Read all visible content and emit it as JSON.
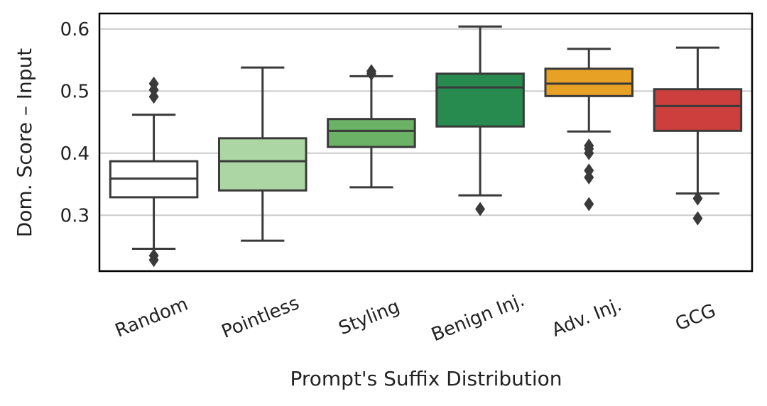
{
  "chart_data": {
    "type": "box",
    "xlabel": "Prompt's Suffix Distribution",
    "ylabel": "Dom. Score – Input",
    "ylim": [
      0.21,
      0.625
    ],
    "yticks": [
      0.3,
      0.4,
      0.5,
      0.6
    ],
    "ytick_labels": [
      "0.3",
      "0.4",
      "0.5",
      "0.6"
    ],
    "grid": "horizontal",
    "categories": [
      "Random",
      "Pointless",
      "Styling",
      "Benign Inj.",
      "Adv. Inj.",
      "GCG"
    ],
    "boxes": [
      {
        "category": "Random",
        "whisker_low": 0.246,
        "q1": 0.329,
        "median": 0.359,
        "q3": 0.387,
        "whisker_high": 0.462,
        "outliers": [
          0.228,
          0.235,
          0.491,
          0.502,
          0.512
        ],
        "color": "#ffffff"
      },
      {
        "category": "Pointless",
        "whisker_low": 0.259,
        "q1": 0.34,
        "median": 0.387,
        "q3": 0.424,
        "whisker_high": 0.538,
        "outliers": [],
        "color": "#acd7a4"
      },
      {
        "category": "Styling",
        "whisker_low": 0.345,
        "q1": 0.41,
        "median": 0.436,
        "q3": 0.455,
        "whisker_high": 0.524,
        "outliers": [
          0.528,
          0.532
        ],
        "color": "#6bb266"
      },
      {
        "category": "Benign Inj.",
        "whisker_low": 0.332,
        "q1": 0.443,
        "median": 0.506,
        "q3": 0.528,
        "whisker_high": 0.604,
        "outliers": [
          0.31
        ],
        "color": "#278a4f"
      },
      {
        "category": "Adv. Inj.",
        "whisker_low": 0.435,
        "q1": 0.492,
        "median": 0.512,
        "q3": 0.536,
        "whisker_high": 0.568,
        "outliers": [
          0.318,
          0.361,
          0.372,
          0.4,
          0.407,
          0.412
        ],
        "color": "#e7a124"
      },
      {
        "category": "GCG",
        "whisker_low": 0.335,
        "q1": 0.436,
        "median": 0.476,
        "q3": 0.503,
        "whisker_high": 0.57,
        "outliers": [
          0.295,
          0.327
        ],
        "color": "#cc3f3d"
      }
    ]
  }
}
